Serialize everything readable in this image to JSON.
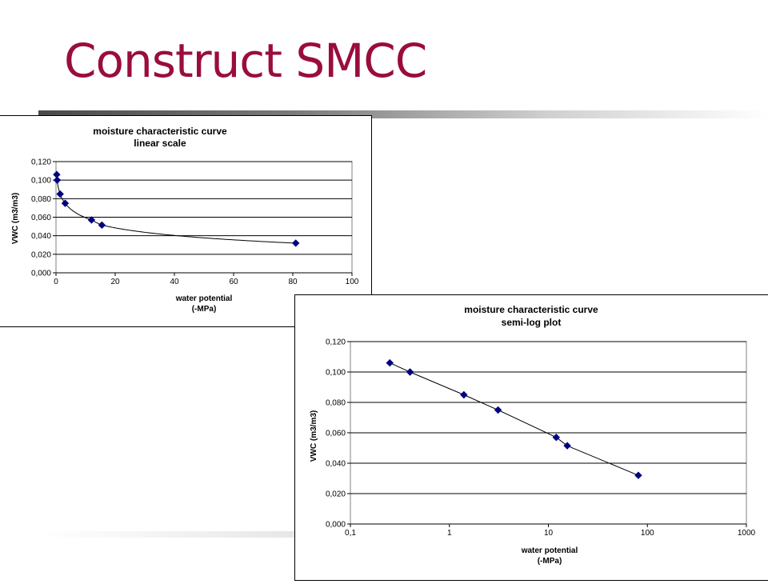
{
  "slide": {
    "title": "Construct SMCC"
  },
  "chart_data": [
    {
      "type": "scatter",
      "title": "moisture characteristic curve",
      "subtitle": "linear scale",
      "xlabel": "water potential",
      "xlabel2": "(-MPa)",
      "ylabel": "VWC (m3/m3)",
      "xscale": "linear",
      "xlim": [
        0,
        100
      ],
      "ylim": [
        0,
        0.12
      ],
      "xticks": [
        0,
        20,
        40,
        60,
        80,
        100
      ],
      "xtick_labels": [
        "0",
        "20",
        "40",
        "60",
        "80",
        "100"
      ],
      "yticks": [
        0,
        0.02,
        0.04,
        0.06,
        0.08,
        0.1,
        0.12
      ],
      "ytick_labels": [
        "0,000",
        "0,020",
        "0,040",
        "0,060",
        "0,080",
        "0,100",
        "0,120"
      ],
      "grid": "horizontal",
      "legend": "none",
      "marker_color": "#000080",
      "trendline": "smooth",
      "points": [
        {
          "x": 0.25,
          "y": 0.106
        },
        {
          "x": 0.4,
          "y": 0.1
        },
        {
          "x": 1.4,
          "y": 0.085
        },
        {
          "x": 3.1,
          "y": 0.075
        },
        {
          "x": 12,
          "y": 0.057
        },
        {
          "x": 15.5,
          "y": 0.0515
        },
        {
          "x": 81,
          "y": 0.032
        }
      ]
    },
    {
      "type": "scatter",
      "title": "moisture characteristic curve",
      "subtitle": "semi-log plot",
      "xlabel": "water potential",
      "xlabel2": "(-MPa)",
      "ylabel": "VWC (m3/m3)",
      "xscale": "log",
      "xlim": [
        0.1,
        1000
      ],
      "ylim": [
        0,
        0.12
      ],
      "xticks": [
        0.1,
        1,
        10,
        100,
        1000
      ],
      "xtick_labels": [
        "0,1",
        "1",
        "10",
        "100",
        "1000"
      ],
      "yticks": [
        0,
        0.02,
        0.04,
        0.06,
        0.08,
        0.1,
        0.12
      ],
      "ytick_labels": [
        "0,000",
        "0,020",
        "0,040",
        "0,060",
        "0,080",
        "0,100",
        "0,120"
      ],
      "grid": "horizontal",
      "legend": "none",
      "marker_color": "#000080",
      "trendline": "straight",
      "points": [
        {
          "x": 0.25,
          "y": 0.106
        },
        {
          "x": 0.4,
          "y": 0.1
        },
        {
          "x": 1.4,
          "y": 0.085
        },
        {
          "x": 3.1,
          "y": 0.075
        },
        {
          "x": 12,
          "y": 0.057
        },
        {
          "x": 15.5,
          "y": 0.0515
        },
        {
          "x": 81,
          "y": 0.032
        }
      ]
    }
  ]
}
